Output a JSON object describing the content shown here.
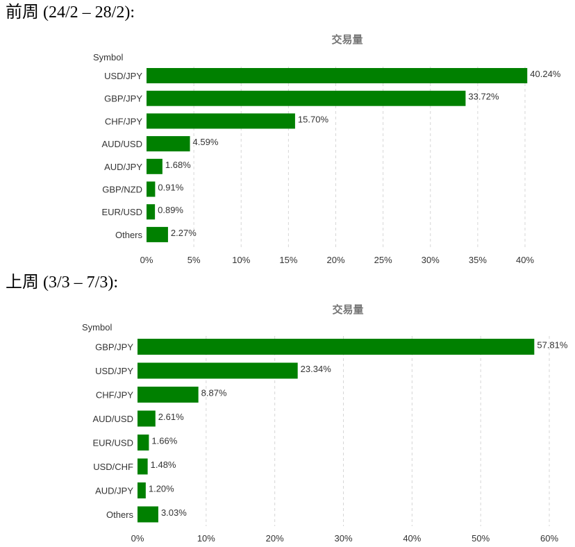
{
  "headings": [
    "前周 (24/2 – 28/2):",
    "上周 (3/3 – 7/3):"
  ],
  "chart_data": [
    {
      "type": "bar",
      "orientation": "horizontal",
      "title": "交易量",
      "ylabel": "Symbol",
      "xlabel": "",
      "categories": [
        "USD/JPY",
        "GBP/JPY",
        "CHF/JPY",
        "AUD/USD",
        "AUD/JPY",
        "GBP/NZD",
        "EUR/USD",
        "Others"
      ],
      "values": [
        40.24,
        33.72,
        15.7,
        4.59,
        1.68,
        0.91,
        0.89,
        2.27
      ],
      "value_labels": [
        "40.24%",
        "33.72%",
        "15.70%",
        "4.59%",
        "1.68%",
        "0.91%",
        "0.89%",
        "2.27%"
      ],
      "xlim": [
        0,
        40
      ],
      "ticks": [
        0,
        5,
        10,
        15,
        20,
        25,
        30,
        35,
        40
      ],
      "tick_labels": [
        "0%",
        "5%",
        "10%",
        "15%",
        "20%",
        "25%",
        "30%",
        "35%",
        "40%"
      ],
      "grid": true,
      "bar_color": "#008000"
    },
    {
      "type": "bar",
      "orientation": "horizontal",
      "title": "交易量",
      "ylabel": "Symbol",
      "xlabel": "",
      "categories": [
        "GBP/JPY",
        "USD/JPY",
        "CHF/JPY",
        "AUD/USD",
        "EUR/USD",
        "USD/CHF",
        "AUD/JPY",
        "Others"
      ],
      "values": [
        57.81,
        23.34,
        8.87,
        2.61,
        1.66,
        1.48,
        1.2,
        3.03
      ],
      "value_labels": [
        "57.81%",
        "23.34%",
        "8.87%",
        "2.61%",
        "1.66%",
        "1.48%",
        "1.20%",
        "3.03%"
      ],
      "xlim": [
        0,
        60
      ],
      "ticks": [
        0,
        10,
        20,
        30,
        40,
        50,
        60
      ],
      "tick_labels": [
        "0%",
        "10%",
        "20%",
        "30%",
        "40%",
        "50%",
        "60%"
      ],
      "grid": true,
      "bar_color": "#008000"
    }
  ]
}
